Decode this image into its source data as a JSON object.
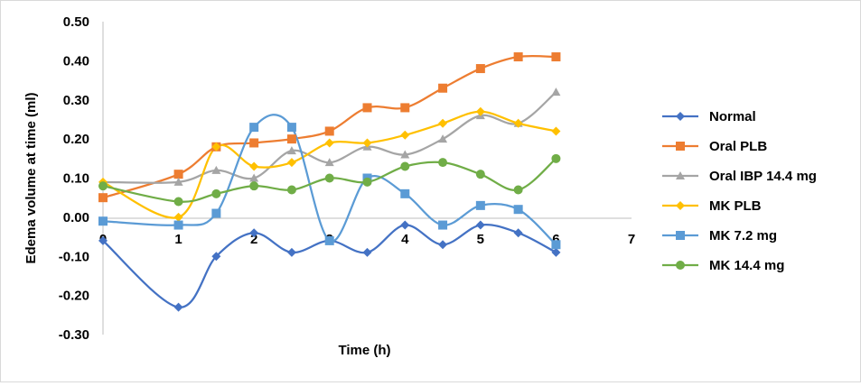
{
  "chart_data": {
    "type": "line",
    "xlabel": "Time (h)",
    "ylabel": "Edema volume at time (ml)",
    "xlim": [
      0,
      7
    ],
    "ylim": [
      -0.3,
      0.5
    ],
    "x_ticks": [
      "0",
      "1",
      "2",
      "3",
      "4",
      "5",
      "6",
      "7"
    ],
    "y_ticks": [
      "0.50",
      "0.40",
      "0.30",
      "0.20",
      "0.10",
      "0.00",
      "-0.10",
      "-0.20",
      "-0.30"
    ],
    "grid": false,
    "legend_position": "right",
    "x": [
      0,
      1,
      1.5,
      2,
      2.5,
      3,
      3.5,
      4,
      4.5,
      5,
      5.5,
      6
    ],
    "series": [
      {
        "name": "Normal",
        "color": "#4472c4",
        "marker": "diamond",
        "values": [
          -0.06,
          -0.23,
          -0.1,
          -0.04,
          -0.09,
          -0.06,
          -0.09,
          -0.02,
          -0.07,
          -0.02,
          -0.04,
          -0.09
        ]
      },
      {
        "name": "Oral PLB",
        "color": "#ed7d31",
        "marker": "square",
        "values": [
          0.05,
          0.11,
          0.18,
          0.19,
          0.2,
          0.22,
          0.28,
          0.28,
          0.33,
          0.38,
          0.41,
          0.41
        ]
      },
      {
        "name": "Oral IBP 14.4 mg",
        "color": "#a5a5a5",
        "marker": "triangle",
        "values": [
          0.09,
          0.09,
          0.12,
          0.1,
          0.17,
          0.14,
          0.18,
          0.16,
          0.2,
          0.26,
          0.24,
          0.32
        ]
      },
      {
        "name": "MK PLB",
        "color": "#ffc000",
        "marker": "diamond",
        "values": [
          0.09,
          0.0,
          0.18,
          0.13,
          0.14,
          0.19,
          0.19,
          0.21,
          0.24,
          0.27,
          0.24,
          0.22
        ]
      },
      {
        "name": "MK 7.2 mg",
        "color": "#5b9bd5",
        "marker": "square",
        "values": [
          -0.01,
          -0.02,
          0.01,
          0.23,
          0.23,
          -0.06,
          0.1,
          0.06,
          -0.02,
          0.03,
          0.02,
          -0.07
        ]
      },
      {
        "name": "MK 14.4 mg",
        "color": "#70ad47",
        "marker": "circle",
        "values": [
          0.08,
          0.04,
          0.06,
          0.08,
          0.07,
          0.1,
          0.09,
          0.13,
          0.14,
          0.11,
          0.07,
          0.15
        ]
      }
    ]
  }
}
